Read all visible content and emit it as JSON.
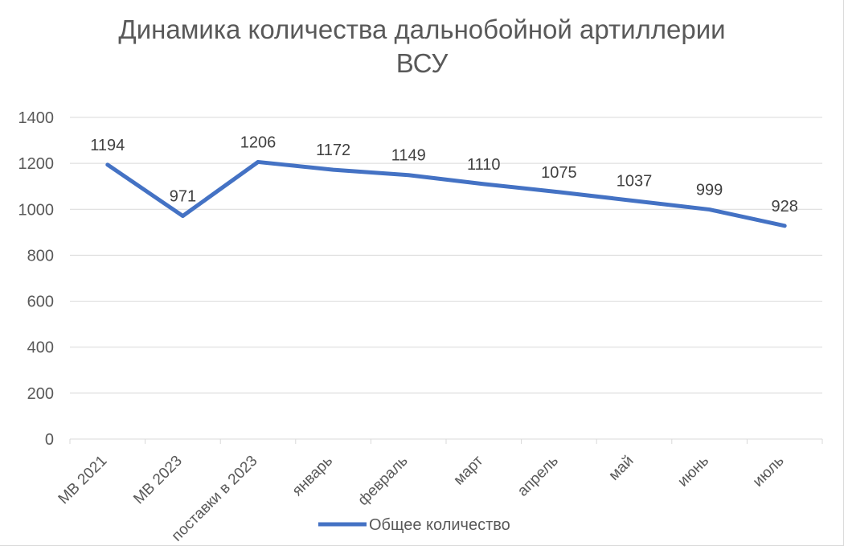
{
  "chart_data": {
    "type": "line",
    "title_lines": [
      "Динамика количества дальнобойной артиллерии",
      "ВСУ"
    ],
    "categories": [
      "МВ 2021",
      "МВ 2023",
      "поставки в 2023",
      "январь",
      "февраль",
      "март",
      "апрель",
      "май",
      "июнь",
      "июль"
    ],
    "series": [
      {
        "name": "Общее количество",
        "values": [
          1194,
          971,
          1206,
          1172,
          1149,
          1110,
          1075,
          1037,
          999,
          928
        ],
        "color": "#4472c4"
      }
    ],
    "ylim": [
      0,
      1400
    ],
    "yticks": [
      0,
      200,
      400,
      600,
      800,
      1000,
      1200,
      1400
    ],
    "grid": true,
    "legend": "bottom",
    "gridline_color": "#d9d9d9"
  }
}
